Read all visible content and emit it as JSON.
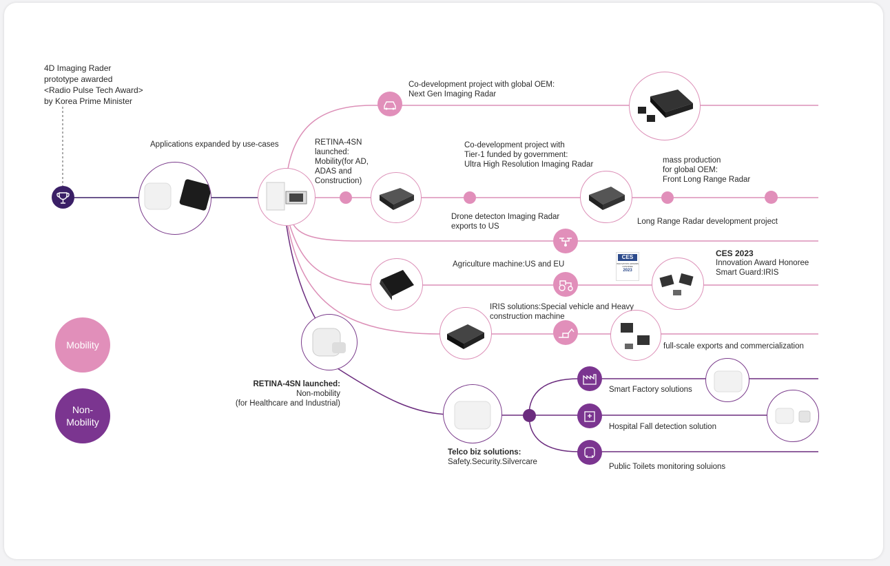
{
  "colors": {
    "mobility": "#e18fba",
    "non_mobility": "#7b3590",
    "line_pink": "#dc8fb7",
    "line_purple": "#6b2c7e",
    "dark": "#3a1f66"
  },
  "award": {
    "l1": "4D Imaging Rader",
    "l2": "prototype awarded",
    "l3": "<Radio Pulse Tech Award>",
    "l4": "by Korea Prime Minister",
    "icon": "trophy-icon"
  },
  "applications": {
    "label": "Applications expanded by use-cases"
  },
  "retina_mobility": {
    "l1": "RETINA-4SN",
    "l2": "launched:",
    "l3": "Mobility(for AD,",
    "l4": "ADAS and",
    "l5": "Construction)"
  },
  "codev_oem": {
    "l1": "Co-development project with global OEM:",
    "l2": "Next Gen Imaging Radar",
    "icon": "car-icon"
  },
  "codev_tier1": {
    "l1": "Co-development project with",
    "l2": "Tier-1 funded by government:",
    "l3": "Ultra High Resolution Imaging Radar"
  },
  "mass_prod": {
    "l1": "mass production",
    "l2": "for global OEM:",
    "l3": "Front Long Range Radar"
  },
  "long_range": {
    "label": "Long Range Radar development project"
  },
  "drone": {
    "l1": "Drone detecton Imaging Radar",
    "l2": "exports to US",
    "icon": "drone-icon"
  },
  "agri": {
    "label": "Agriculture machine:US and EU",
    "icon": "tractor-icon"
  },
  "ces": {
    "title": "CES 2023",
    "l1": "Innovation Award Honoree",
    "l2": "Smart Guard:IRIS",
    "badge_l1": "CES",
    "badge_l2": "INNOVATION AWARDS",
    "badge_l3": "HONOREE",
    "badge_year": "2023"
  },
  "iris": {
    "l1": "IRIS solutions:Special vehicle and Heavy",
    "l2": "construction machine",
    "icon": "excavator-icon"
  },
  "exports": {
    "label": "full-scale exports and commercialization"
  },
  "retina_non": {
    "l1": "RETINA-4SN launched:",
    "l2": "Non-mobility",
    "l3": "(for Healthcare and Industrial)"
  },
  "telco": {
    "l1": "Telco biz solutions:",
    "l2": "Safety.Security.Silvercare"
  },
  "smart_factory": {
    "label": "Smart Factory solutions",
    "icon": "factory-icon"
  },
  "hospital": {
    "label": "Hospital Fall detection solution",
    "icon": "hospital-icon"
  },
  "toilets": {
    "label": "Public Toilets monitoring soluions",
    "icon": "toilet-icon"
  },
  "legend": {
    "mobility": "Mobility",
    "non_l1": "Non-",
    "non_l2": "Mobility"
  }
}
